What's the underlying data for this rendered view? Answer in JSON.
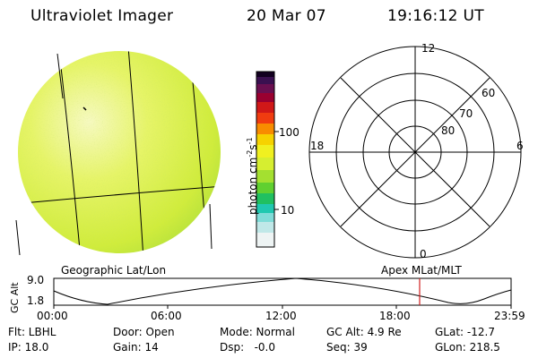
{
  "header": {
    "instrument": "Ultraviolet Imager",
    "date": "20 Mar 07",
    "time": "19:16:12 UT"
  },
  "colorbar": {
    "unit_label": "photon cm",
    "unit_sup1": "-2",
    "unit_mid": "s",
    "unit_sup2": "-1",
    "tick_100": "100",
    "tick_10": "10"
  },
  "polar_plot": {
    "lat_labels": [
      "80",
      "70",
      "60"
    ],
    "mlt_labels": {
      "top": "12",
      "left": "18",
      "right": "6",
      "bottom": "0"
    }
  },
  "labels": {
    "left": "Geographic Lat/Lon",
    "right": "Apex MLat/MLT"
  },
  "altitude_plot": {
    "ylabel": "GC Alt",
    "ytick_top": "9.0",
    "ytick_bottom": "1.8",
    "x_ticks": [
      "00:00",
      "06:00",
      "12:00",
      "18:00",
      "23:59"
    ],
    "current_time_marker_color": "#d02020"
  },
  "footer": {
    "flt": "Flt: LBHL",
    "door": "Door: Open",
    "mode": "Mode: Normal",
    "gc_alt": "GC Alt: 4.9 Re",
    "glat": "GLat: -12.7",
    "ip": "IP: 18.0",
    "gain": "Gain: 14",
    "dsp": "Dsp:   -0.0",
    "seq": "Seq: 39",
    "glon": "GLon: 218.5"
  },
  "colors": {
    "disk_main": "#d8f040",
    "disk_bright": "#f4f8b0",
    "disk_green": "#9ad83a"
  }
}
